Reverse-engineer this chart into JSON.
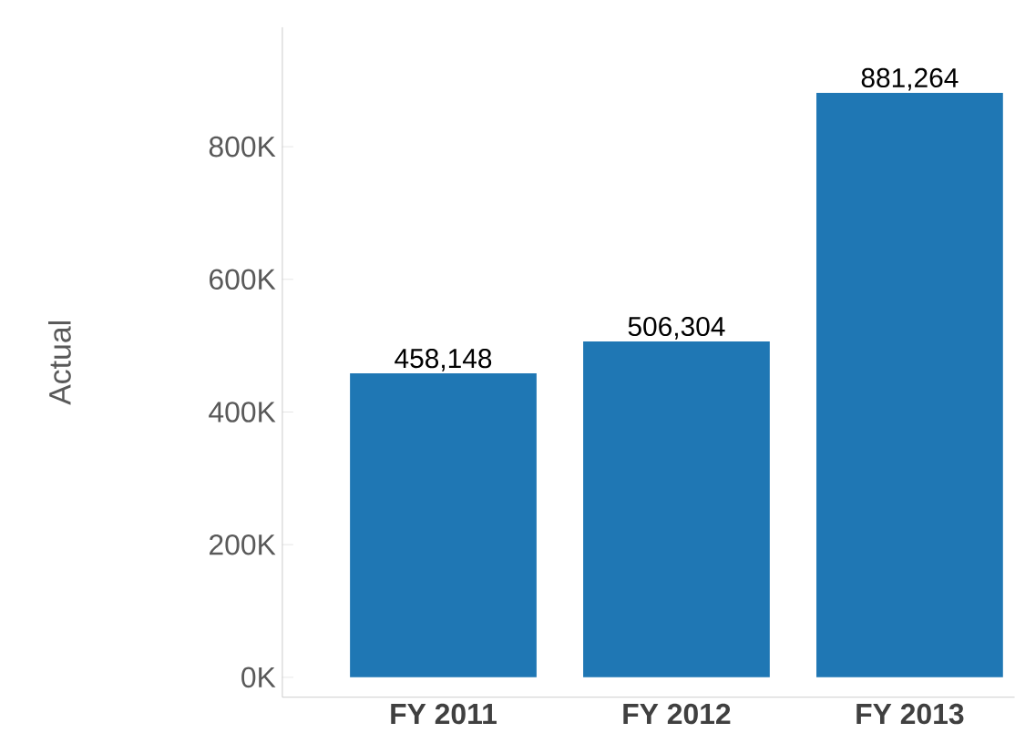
{
  "chart_data": {
    "type": "bar",
    "ylabel": "Actual",
    "categories": [
      "FY 2011",
      "FY 2012",
      "FY 2013"
    ],
    "values": [
      458148,
      506304,
      881264
    ],
    "value_labels": [
      "458,148",
      "506,304",
      "881,264"
    ],
    "color": "#1f77b4",
    "ylim": [
      -30000,
      980000
    ],
    "yticks": [
      {
        "value": 0,
        "label": "0K"
      },
      {
        "value": 200000,
        "label": "200K"
      },
      {
        "value": 400000,
        "label": "400K"
      },
      {
        "value": 600000,
        "label": "600K"
      },
      {
        "value": 800000,
        "label": "800K"
      }
    ],
    "grid": false
  }
}
